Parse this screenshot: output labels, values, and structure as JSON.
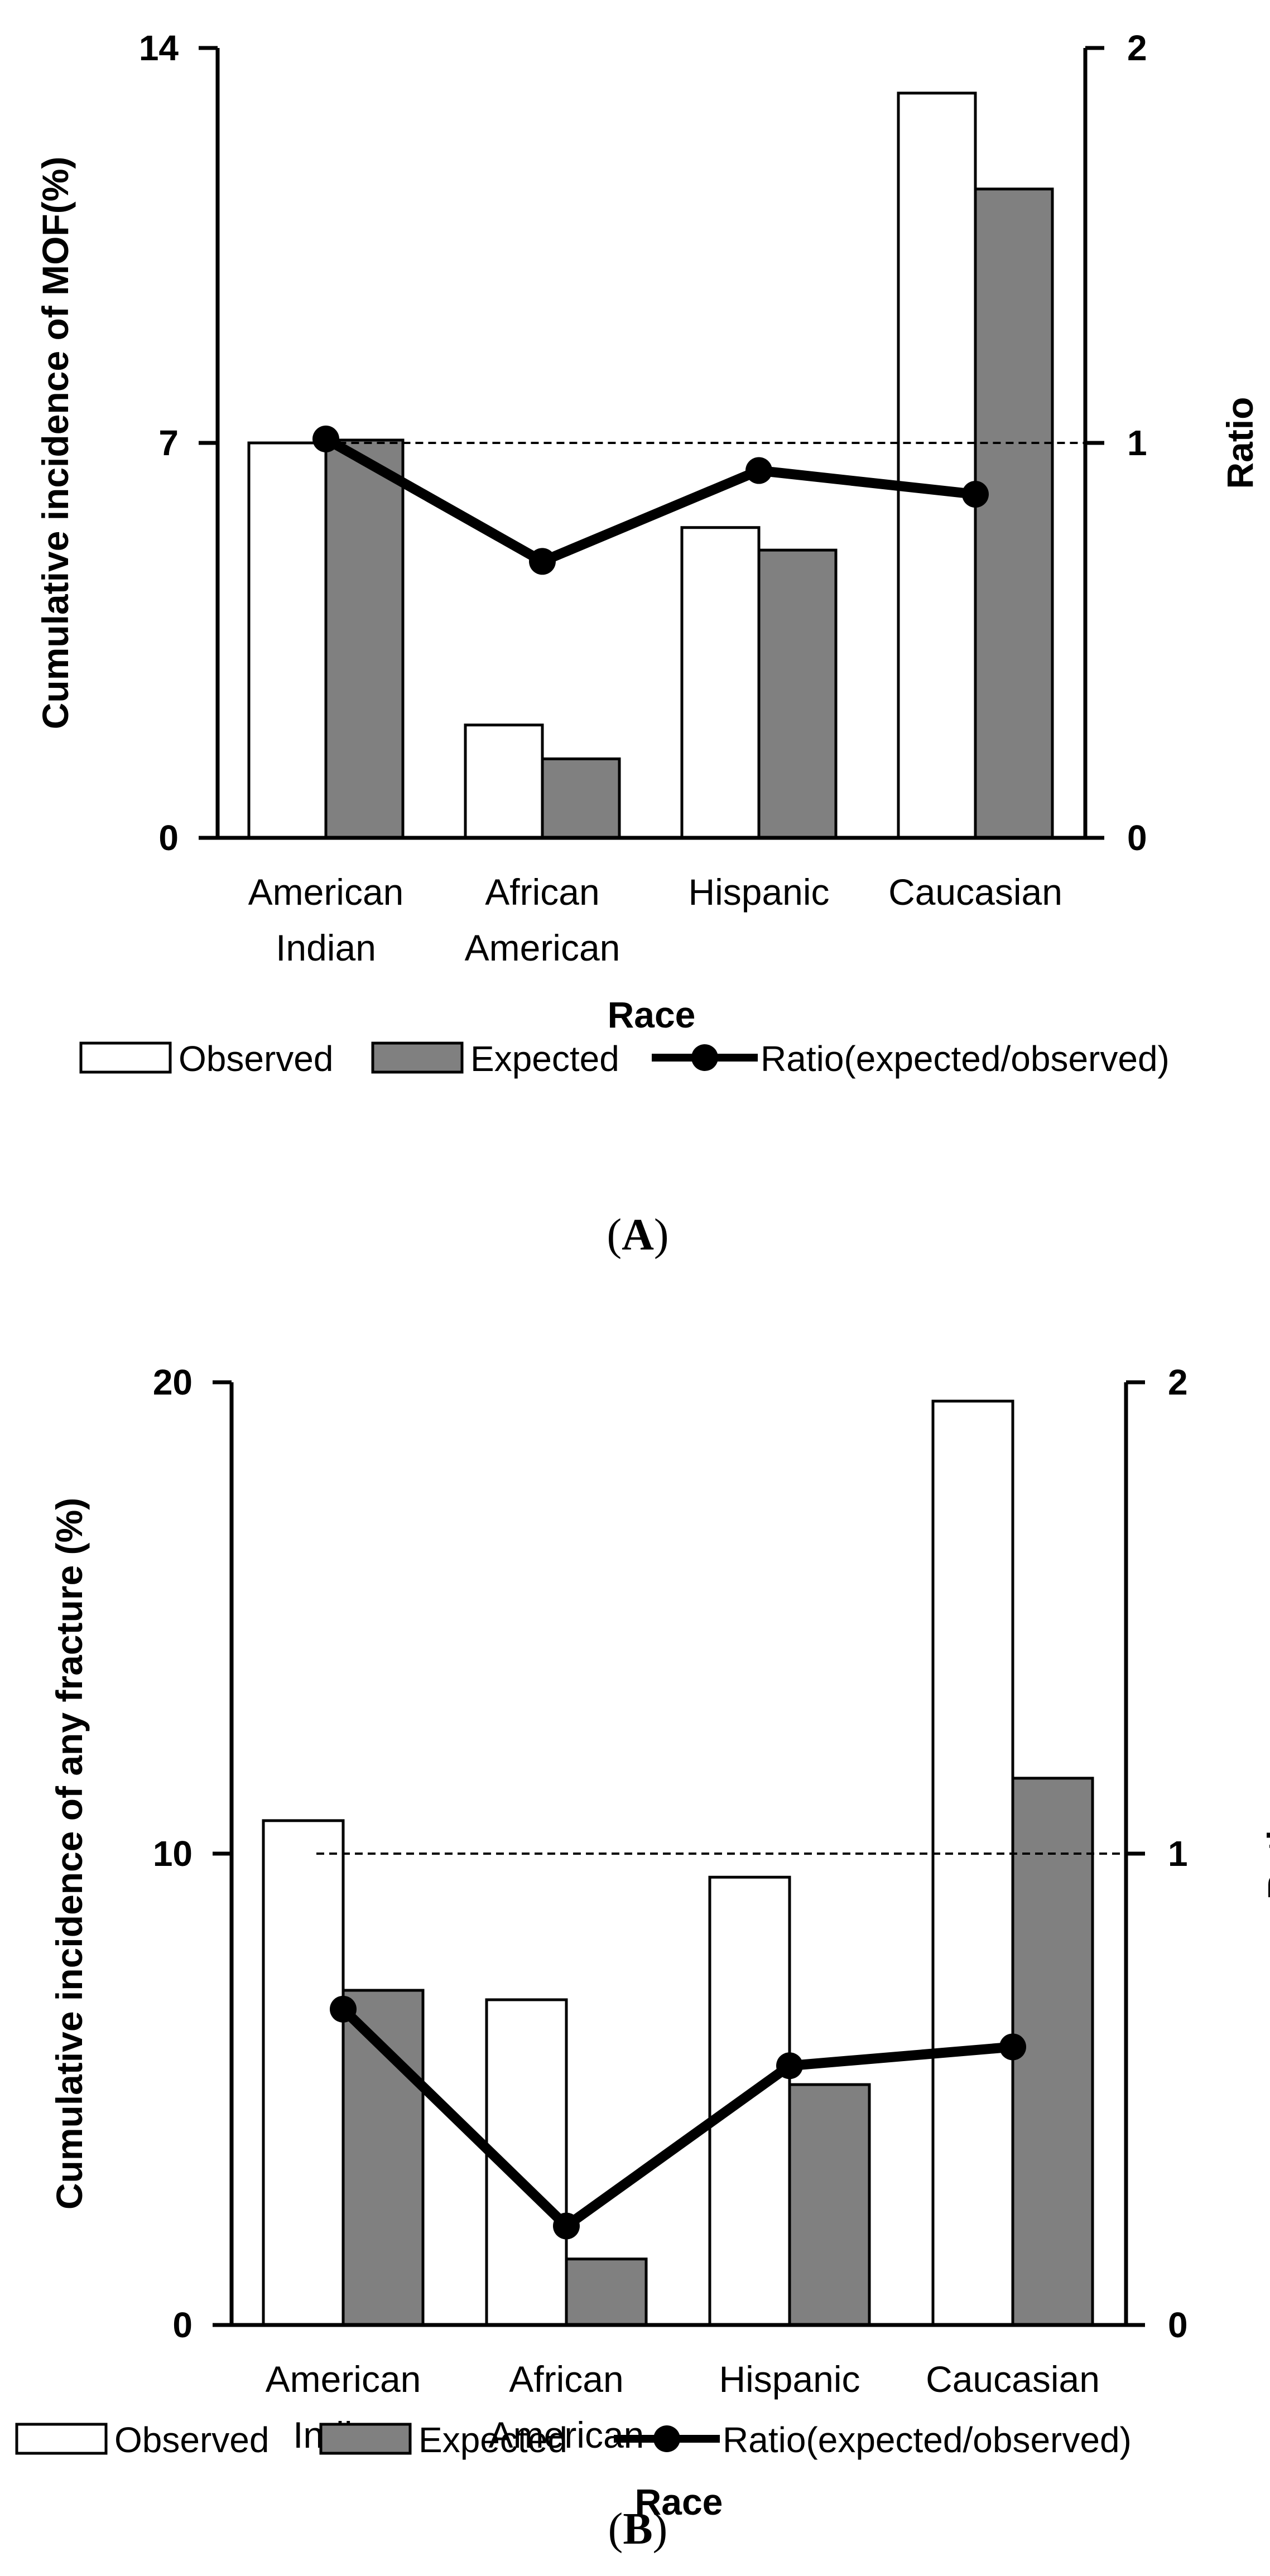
{
  "chart_data": [
    {
      "type": "bar",
      "panel_label": "(A)",
      "panel_letter": "A",
      "categories": [
        [
          "American",
          "Indian"
        ],
        [
          "African",
          "American"
        ],
        [
          "Hispanic"
        ],
        [
          "Caucasian"
        ]
      ],
      "xlabel": "Race",
      "ylabel": "Cumulative incidence  of MOF(%)",
      "y2label": "Ratio",
      "ylim": [
        0,
        14
      ],
      "y2lim": [
        0,
        2
      ],
      "yticks": [
        "0",
        "7",
        "14"
      ],
      "y2ticks": [
        "0",
        "1",
        "2"
      ],
      "reference_line": 1,
      "series": [
        {
          "name": "Observed",
          "kind": "bar",
          "axis": "left",
          "values": [
            7.0,
            2.0,
            5.5,
            13.2
          ]
        },
        {
          "name": "Expected",
          "kind": "bar",
          "axis": "left",
          "values": [
            7.05,
            1.4,
            5.1,
            11.5
          ]
        },
        {
          "name": "Ratio(expected/observed)",
          "kind": "line",
          "axis": "right",
          "values": [
            1.01,
            0.7,
            0.93,
            0.87
          ]
        }
      ]
    },
    {
      "type": "bar",
      "panel_label": "(B)",
      "panel_letter": "B",
      "categories": [
        [
          "American",
          "Indian"
        ],
        [
          "African",
          "American"
        ],
        [
          "Hispanic"
        ],
        [
          "Caucasian"
        ]
      ],
      "xlabel": "Race",
      "ylabel": "Cumulative incidence of any fracture (%)",
      "y2label": "Ratio",
      "ylim": [
        0,
        20
      ],
      "y2lim": [
        0,
        2
      ],
      "yticks": [
        "0",
        "10",
        "20"
      ],
      "y2ticks": [
        "0",
        "1",
        "2"
      ],
      "reference_line": 1,
      "series": [
        {
          "name": "Observed",
          "kind": "bar",
          "axis": "left",
          "values": [
            10.7,
            6.9,
            9.5,
            19.6
          ]
        },
        {
          "name": "Expected",
          "kind": "bar",
          "axis": "left",
          "values": [
            7.1,
            1.4,
            5.1,
            11.6
          ]
        },
        {
          "name": "Ratio(expected/observed)",
          "kind": "line",
          "axis": "right",
          "values": [
            0.67,
            0.21,
            0.55,
            0.59
          ]
        }
      ]
    }
  ],
  "colors": {
    "observed_fill": "#ffffff",
    "expected_fill": "#808080",
    "line": "#000000",
    "axis": "#000000"
  }
}
